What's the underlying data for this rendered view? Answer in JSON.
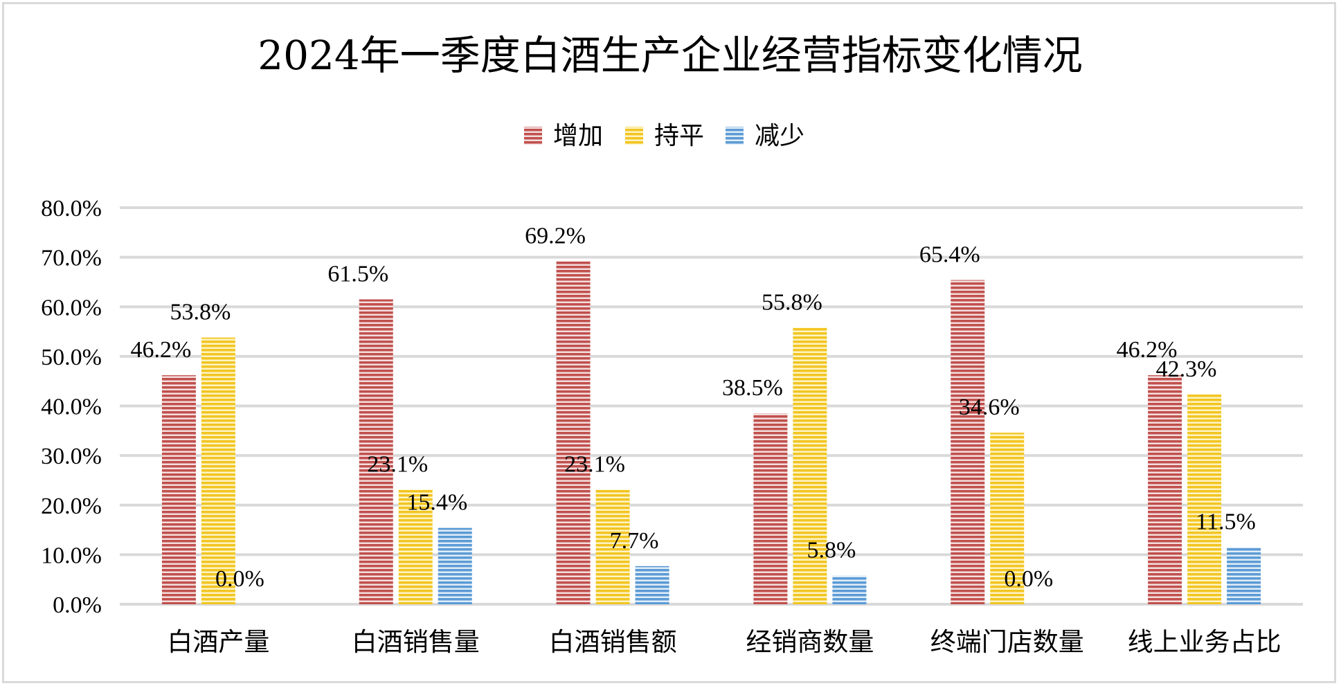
{
  "chart_data": {
    "type": "bar",
    "title": "2024年一季度白酒生产企业经营指标变化情况",
    "categories": [
      "白酒产量",
      "白酒销售量",
      "白酒销售额",
      "经销商数量",
      "终端门店数量",
      "线上业务占比"
    ],
    "series": [
      {
        "name": "增加",
        "color": "#c0504d",
        "values": [
          46.2,
          61.5,
          69.2,
          38.5,
          65.4,
          46.2
        ]
      },
      {
        "name": "持平",
        "color": "#f2c521",
        "values": [
          53.8,
          23.1,
          23.1,
          55.8,
          34.6,
          42.3
        ]
      },
      {
        "name": "减少",
        "color": "#5b9bd5",
        "values": [
          0.0,
          15.4,
          7.7,
          5.8,
          0.0,
          11.5
        ]
      }
    ],
    "data_labels": [
      [
        "46.2%",
        "61.5%",
        "69.2%",
        "38.5%",
        "65.4%",
        "46.2%"
      ],
      [
        "53.8%",
        "23.1%",
        "23.1%",
        "55.8%",
        "34.6%",
        "42.3%"
      ],
      [
        "0.0%",
        "15.4%",
        "7.7%",
        "5.8%",
        "0.0%",
        "11.5%"
      ]
    ],
    "y_ticks": [
      "0.0%",
      "10.0%",
      "20.0%",
      "30.0%",
      "40.0%",
      "50.0%",
      "60.0%",
      "70.0%",
      "80.0%"
    ],
    "ylim": [
      0,
      80
    ],
    "grid": true,
    "legend_position": "top-center"
  }
}
